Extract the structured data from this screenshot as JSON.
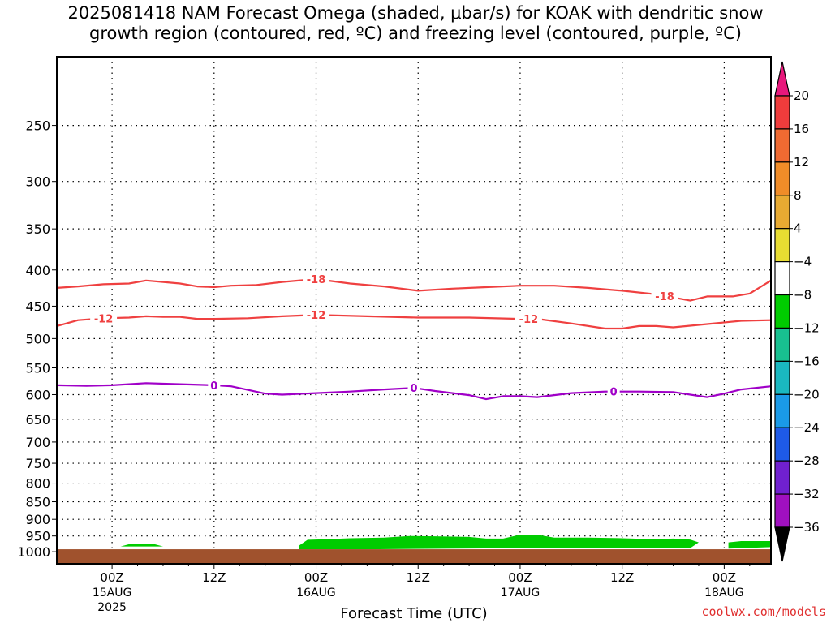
{
  "title_line1": "2025081418 NAM Forecast Omega (shaded, μbar/s) for KOAK with dendritic snow",
  "title_line2": "growth region (contoured, red, ºC) and freezing level (contoured, purple, ºC)",
  "credit": "coolwx.com/models",
  "chart_data": {
    "type": "contour",
    "xlabel": "Forecast Time (UTC)",
    "ylabel": "",
    "y_axis": "pressure (mb), log scale, inverted",
    "ylim": [
      1040,
      200
    ],
    "xlim_hours": [
      -6.5,
      77.5
    ],
    "x_reference": "2025-08-15 00Z",
    "x_ticks": [
      {
        "hour": 0,
        "label": "00Z",
        "date": "15AUG",
        "year": "2025"
      },
      {
        "hour": 12,
        "label": "12Z",
        "date": "",
        "year": ""
      },
      {
        "hour": 24,
        "label": "00Z",
        "date": "16AUG",
        "year": ""
      },
      {
        "hour": 36,
        "label": "12Z",
        "date": "",
        "year": ""
      },
      {
        "hour": 48,
        "label": "00Z",
        "date": "17AUG",
        "year": ""
      },
      {
        "hour": 60,
        "label": "12Z",
        "date": "",
        "year": ""
      },
      {
        "hour": 72,
        "label": "00Z",
        "date": "18AUG",
        "year": ""
      }
    ],
    "y_ticks": [
      250,
      300,
      350,
      400,
      450,
      500,
      550,
      600,
      650,
      700,
      750,
      800,
      850,
      900,
      950,
      1000
    ],
    "grid": true,
    "contours": [
      {
        "name": "-18",
        "color": "#ef4040",
        "label_hours": [
          24,
          65
        ],
        "points": [
          [
            -6.5,
            424
          ],
          [
            -4,
            422
          ],
          [
            -1,
            419
          ],
          [
            2,
            418
          ],
          [
            4,
            414
          ],
          [
            6,
            416
          ],
          [
            8,
            418
          ],
          [
            10,
            422
          ],
          [
            12,
            423
          ],
          [
            14,
            421
          ],
          [
            17,
            420
          ],
          [
            20,
            416
          ],
          [
            24,
            412
          ],
          [
            28,
            418
          ],
          [
            32,
            422
          ],
          [
            36,
            428
          ],
          [
            40,
            425
          ],
          [
            44,
            423
          ],
          [
            48,
            421
          ],
          [
            52,
            421
          ],
          [
            56,
            424
          ],
          [
            60,
            428
          ],
          [
            64,
            433
          ],
          [
            68,
            442
          ],
          [
            70,
            436
          ],
          [
            73,
            436
          ],
          [
            75,
            432
          ],
          [
            77.5,
            414
          ]
        ]
      },
      {
        "name": "-12",
        "color": "#ef4040",
        "label_hours": [
          -1,
          24,
          49
        ],
        "points": [
          [
            -6.5,
            480
          ],
          [
            -4,
            471
          ],
          [
            -1,
            468
          ],
          [
            2,
            467
          ],
          [
            4,
            465
          ],
          [
            6,
            466
          ],
          [
            8,
            466
          ],
          [
            10,
            469
          ],
          [
            12,
            469
          ],
          [
            16,
            468
          ],
          [
            20,
            465
          ],
          [
            24,
            463
          ],
          [
            30,
            465
          ],
          [
            36,
            467
          ],
          [
            42,
            467
          ],
          [
            48,
            469
          ],
          [
            50,
            469
          ],
          [
            54,
            476
          ],
          [
            58,
            484
          ],
          [
            60,
            484
          ],
          [
            62,
            480
          ],
          [
            64,
            480
          ],
          [
            66,
            482
          ],
          [
            70,
            477
          ],
          [
            74,
            472
          ],
          [
            77.5,
            471
          ]
        ]
      },
      {
        "name": "0",
        "color": "#a000c8",
        "label_hours": [
          12,
          35.5,
          59
        ],
        "points": [
          [
            -6.5,
            582
          ],
          [
            -3,
            583
          ],
          [
            0,
            582
          ],
          [
            4,
            578
          ],
          [
            8,
            580
          ],
          [
            12,
            582
          ],
          [
            14,
            584
          ],
          [
            18,
            598
          ],
          [
            20,
            600
          ],
          [
            24,
            597
          ],
          [
            28,
            594
          ],
          [
            32,
            590
          ],
          [
            35.5,
            587
          ],
          [
            38,
            593
          ],
          [
            42,
            601
          ],
          [
            44,
            609
          ],
          [
            46,
            603
          ],
          [
            48,
            603
          ],
          [
            50,
            605
          ],
          [
            54,
            597
          ],
          [
            58,
            594
          ],
          [
            62,
            594
          ],
          [
            66,
            595
          ],
          [
            70,
            605
          ],
          [
            72,
            598
          ],
          [
            74,
            590
          ],
          [
            77.5,
            584
          ]
        ]
      }
    ],
    "shaded_regions": [
      {
        "value_range": [
          -8,
          -4
        ],
        "color": "#00cc00",
        "description": "upward motion near surface",
        "polygons": [
          [
            [
              1,
              983
            ],
            [
              2,
              976
            ],
            [
              5,
              976
            ],
            [
              6,
              983
            ]
          ],
          [
            [
              22,
              1000
            ],
            [
              22,
              980
            ],
            [
              23,
              962
            ],
            [
              25,
              960
            ],
            [
              28,
              957
            ],
            [
              32,
              955
            ],
            [
              35,
              950
            ],
            [
              38,
              951
            ],
            [
              42,
              953
            ],
            [
              44,
              958
            ],
            [
              46,
              958
            ],
            [
              48,
              946
            ],
            [
              50,
              946
            ],
            [
              52,
              955
            ],
            [
              56,
              955
            ],
            [
              60,
              957
            ],
            [
              64,
              960
            ],
            [
              66,
              958
            ],
            [
              68,
              961
            ],
            [
              69,
              970
            ],
            [
              68,
              988
            ],
            [
              60,
              988
            ],
            [
              50,
              988
            ],
            [
              40,
              990
            ],
            [
              30,
              992
            ],
            [
              22,
              992
            ]
          ],
          [
            [
              72.5,
              990
            ],
            [
              72.5,
              970
            ],
            [
              74,
              966
            ],
            [
              77.5,
              966
            ],
            [
              77.5,
              985
            ]
          ]
        ]
      },
      {
        "value_range": "terrain",
        "color": "#a0522d",
        "description": "below ground",
        "top_mb": 992
      }
    ],
    "colorbar": {
      "levels": [
        20,
        16,
        12,
        8,
        4,
        -4,
        -8,
        -12,
        -16,
        -20,
        -24,
        -28,
        -32,
        -36
      ],
      "level_labels": [
        "20",
        "16",
        "12",
        "8",
        "4",
        "−4",
        "−8",
        "−12",
        "−16",
        "−20",
        "−24",
        "−28",
        "−32",
        "−36"
      ],
      "colors": [
        "#e8187c",
        "#ef3c3c",
        "#ef6a32",
        "#f08c28",
        "#e8aa32",
        "#e8dc32",
        "#ffffff",
        "#00cc00",
        "#18c090",
        "#1ab8c0",
        "#1a9ae8",
        "#1e5ae8",
        "#7020d0",
        "#a010c0",
        "#a0a0a0",
        "#000000"
      ]
    }
  }
}
